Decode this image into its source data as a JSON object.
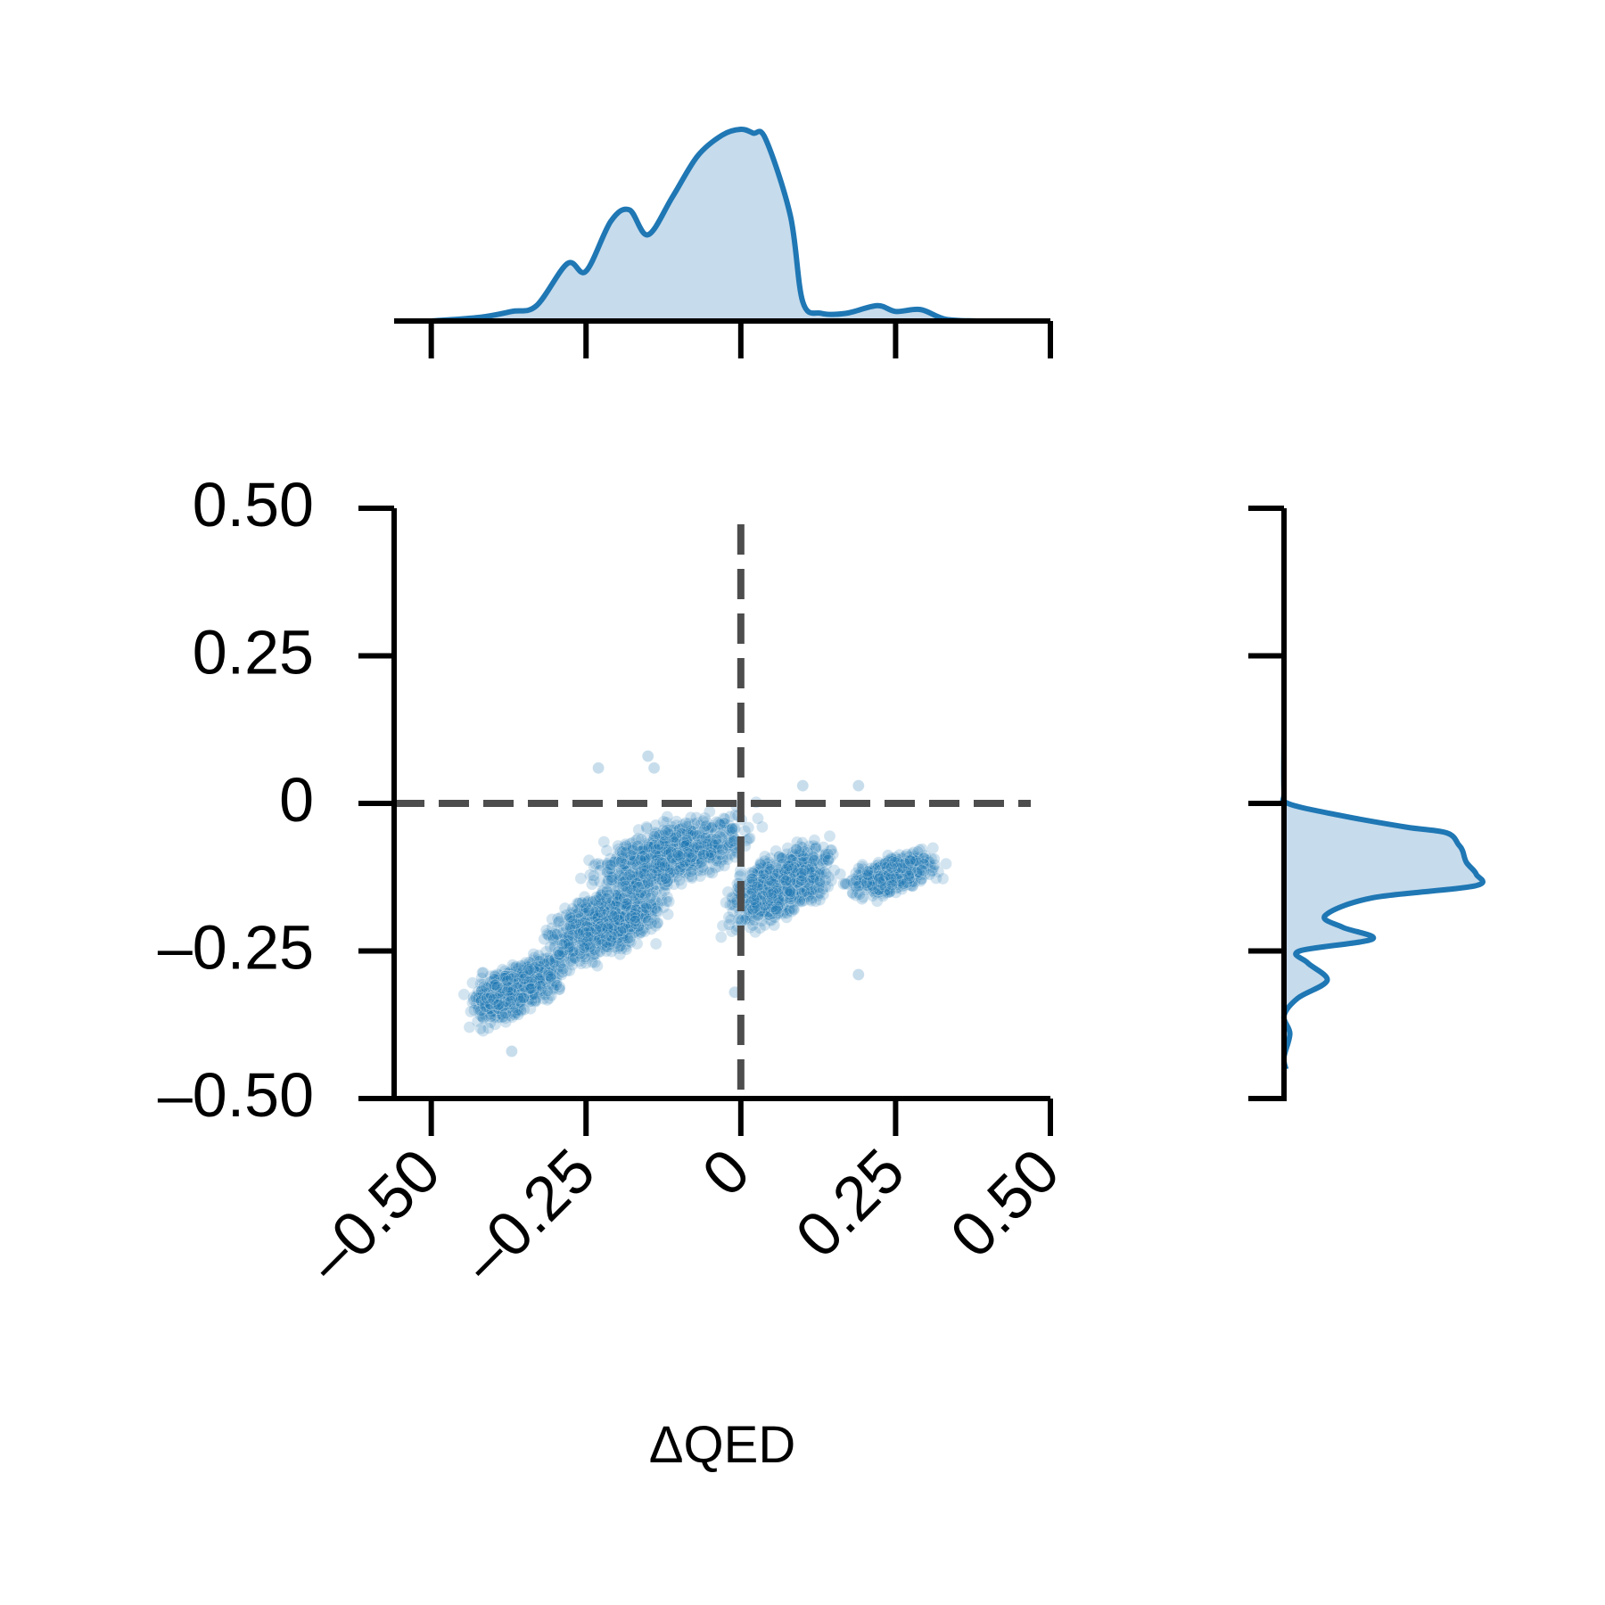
{
  "chart_data": {
    "type": "scatter",
    "subtype": "joint plot with marginal KDE",
    "title": "",
    "xlabel": "ΔQED",
    "ylabel": "",
    "xlim": [
      -0.56,
      0.5
    ],
    "ylim": [
      -0.5,
      0.5
    ],
    "x_ticks": [
      -0.5,
      -0.25,
      0,
      0.25,
      0.5
    ],
    "x_tick_labels": [
      "–0.50",
      "–0.25",
      "0",
      "0.25",
      "0.50"
    ],
    "y_ticks": [
      -0.5,
      -0.25,
      0,
      0.25,
      0.5
    ],
    "y_tick_labels": [
      "–0.50",
      "–0.25",
      "0",
      "0.25",
      "0.50"
    ],
    "x_tick_label_rotation": "45 degrees",
    "grid": false,
    "reference_lines": [
      {
        "orientation": "vertical",
        "value": 0,
        "style": "dashed",
        "color": "#4d4d4d"
      },
      {
        "orientation": "horizontal",
        "value": 0,
        "style": "dashed",
        "color": "#4d4d4d"
      }
    ],
    "point_color": "#1f77b4",
    "point_alpha": 0.2,
    "point_count_estimate": "several thousand",
    "point_clusters": [
      {
        "x_range": [
          -0.46,
          -0.27
        ],
        "y_range": [
          -0.41,
          -0.22
        ],
        "density": "high"
      },
      {
        "x_range": [
          -0.34,
          -0.1
        ],
        "y_range": [
          -0.33,
          -0.08
        ],
        "density": "high"
      },
      {
        "x_range": [
          -0.27,
          0.05
        ],
        "y_range": [
          -0.2,
          0.03
        ],
        "density": "high"
      },
      {
        "x_range": [
          -0.04,
          0.17
        ],
        "y_range": [
          -0.26,
          -0.02
        ],
        "density": "high"
      },
      {
        "x_range": [
          0.15,
          0.34
        ],
        "y_range": [
          -0.19,
          -0.05
        ],
        "density": "medium"
      }
    ],
    "outlier_points": [
      {
        "x": -0.14,
        "y": 0.06
      },
      {
        "x": -0.23,
        "y": 0.06
      },
      {
        "x": -0.15,
        "y": 0.08
      },
      {
        "x": 0.19,
        "y": 0.03
      },
      {
        "x": 0.1,
        "y": 0.03
      },
      {
        "x": -0.01,
        "y": -0.32
      },
      {
        "x": 0.19,
        "y": -0.29
      },
      {
        "x": -0.37,
        "y": -0.42
      }
    ],
    "marginal_x_kde": {
      "x": [
        -0.5,
        -0.42,
        -0.37,
        -0.33,
        -0.28,
        -0.25,
        -0.21,
        -0.18,
        -0.15,
        -0.11,
        -0.07,
        -0.03,
        0,
        0.02,
        0.04,
        0.08,
        0.1,
        0.13,
        0.17,
        0.22,
        0.25,
        0.29,
        0.33,
        0.38
      ],
      "density": [
        0.0,
        0.02,
        0.05,
        0.08,
        0.3,
        0.26,
        0.52,
        0.58,
        0.45,
        0.65,
        0.86,
        0.97,
        1.0,
        0.98,
        0.95,
        0.55,
        0.1,
        0.04,
        0.04,
        0.08,
        0.05,
        0.06,
        0.01,
        0.0
      ],
      "fill_color": "#c6dbec",
      "line_color": "#1f77b4"
    },
    "marginal_y_kde": {
      "y": [
        0.12,
        0.02,
        0.0,
        -0.02,
        -0.04,
        -0.05,
        -0.07,
        -0.08,
        -0.1,
        -0.12,
        -0.14,
        -0.16,
        -0.19,
        -0.21,
        -0.23,
        -0.25,
        -0.27,
        -0.3,
        -0.33,
        -0.36,
        -0.39,
        -0.43,
        -0.45
      ],
      "density": [
        0.0,
        0.0,
        0.02,
        0.28,
        0.62,
        0.83,
        0.89,
        0.91,
        0.93,
        0.98,
        0.97,
        0.45,
        0.21,
        0.3,
        0.45,
        0.08,
        0.12,
        0.22,
        0.07,
        0.0,
        0.03,
        0.0,
        0.01
      ],
      "fill_color": "#c6dbec",
      "line_color": "#1f77b4"
    }
  }
}
